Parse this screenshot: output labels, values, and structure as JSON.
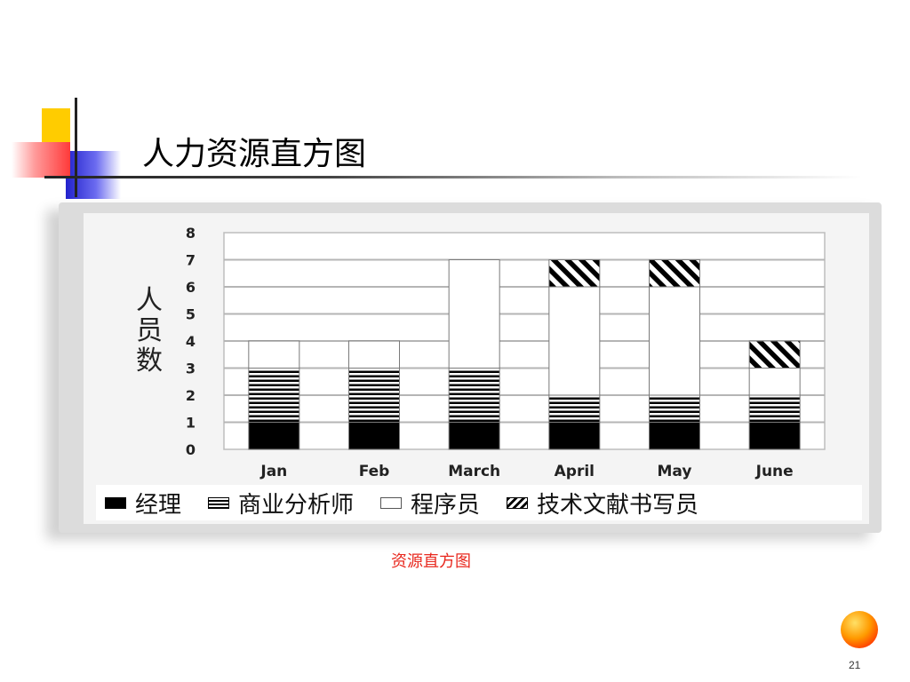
{
  "slide": {
    "title": "人力资源直方图",
    "caption": "资源直方图",
    "page_number": "21"
  },
  "colors": {
    "caption": "#e8281e",
    "manager": "#000000",
    "programmer": "#ffffff"
  },
  "chart_data": {
    "type": "bar",
    "stacked": true,
    "categories": [
      "Jan",
      "Feb",
      "March",
      "April",
      "May",
      "June"
    ],
    "series": [
      {
        "name": "经理",
        "pattern": "solid-black",
        "values": [
          1,
          1,
          1,
          1,
          1,
          1
        ]
      },
      {
        "name": "商业分析师",
        "pattern": "horizontal-stripes",
        "values": [
          2,
          2,
          2,
          1,
          1,
          1
        ]
      },
      {
        "name": "程序员",
        "pattern": "white",
        "values": [
          1,
          1,
          4,
          4,
          4,
          1
        ]
      },
      {
        "name": "技术文献书写员",
        "pattern": "diagonal-hatch",
        "values": [
          0,
          0,
          0,
          1,
          1,
          1
        ]
      }
    ],
    "ylabel": "人员数",
    "xlabel": "",
    "ylim": [
      0,
      8
    ],
    "yticks": [
      0,
      1,
      2,
      3,
      4,
      5,
      6,
      7,
      8
    ],
    "grid": true,
    "legend": "bottom"
  }
}
